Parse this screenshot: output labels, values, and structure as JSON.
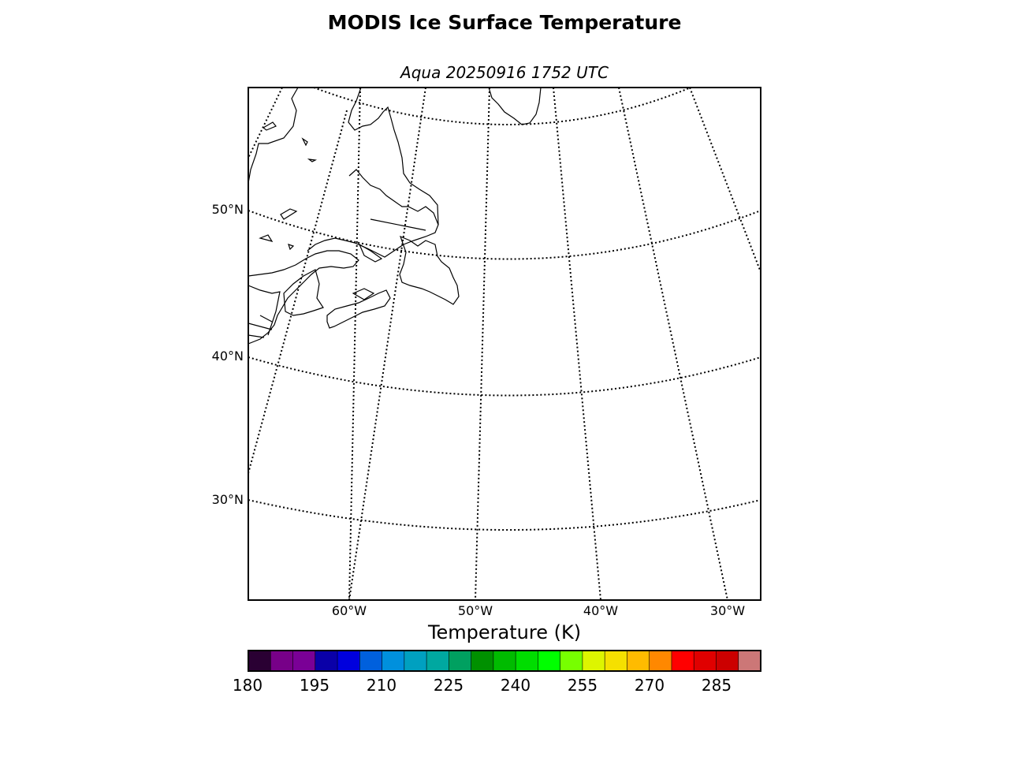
{
  "title": "MODIS Ice Surface Temperature",
  "subtitle": "Aqua 20250916 1752 UTC",
  "map": {
    "projection": "lambert-conformal",
    "latitude_labels": [
      "50°N",
      "40°N",
      "30°N"
    ],
    "longitude_labels": [
      "60°W",
      "50°W",
      "40°W",
      "30°W"
    ],
    "graticule_style": "dotted",
    "land_outline_color": "#000000",
    "background_color": "#ffffff"
  },
  "colorbar": {
    "label": "Temperature (K)",
    "tick_labels": [
      "180",
      "195",
      "210",
      "225",
      "240",
      "255",
      "270",
      "285"
    ],
    "range": [
      180,
      295
    ],
    "colors": [
      "#2a0033",
      "#770088",
      "#7a0096",
      "#0a00a8",
      "#0000dd",
      "#0060dd",
      "#0090dd",
      "#00a0c0",
      "#00a8a0",
      "#00a060",
      "#009000",
      "#00bb00",
      "#00dd00",
      "#00ff00",
      "#77ff00",
      "#ddf500",
      "#f5e000",
      "#ffbb00",
      "#ff8800",
      "#ff0000",
      "#e00000",
      "#cc0000",
      "#cc7777"
    ]
  }
}
